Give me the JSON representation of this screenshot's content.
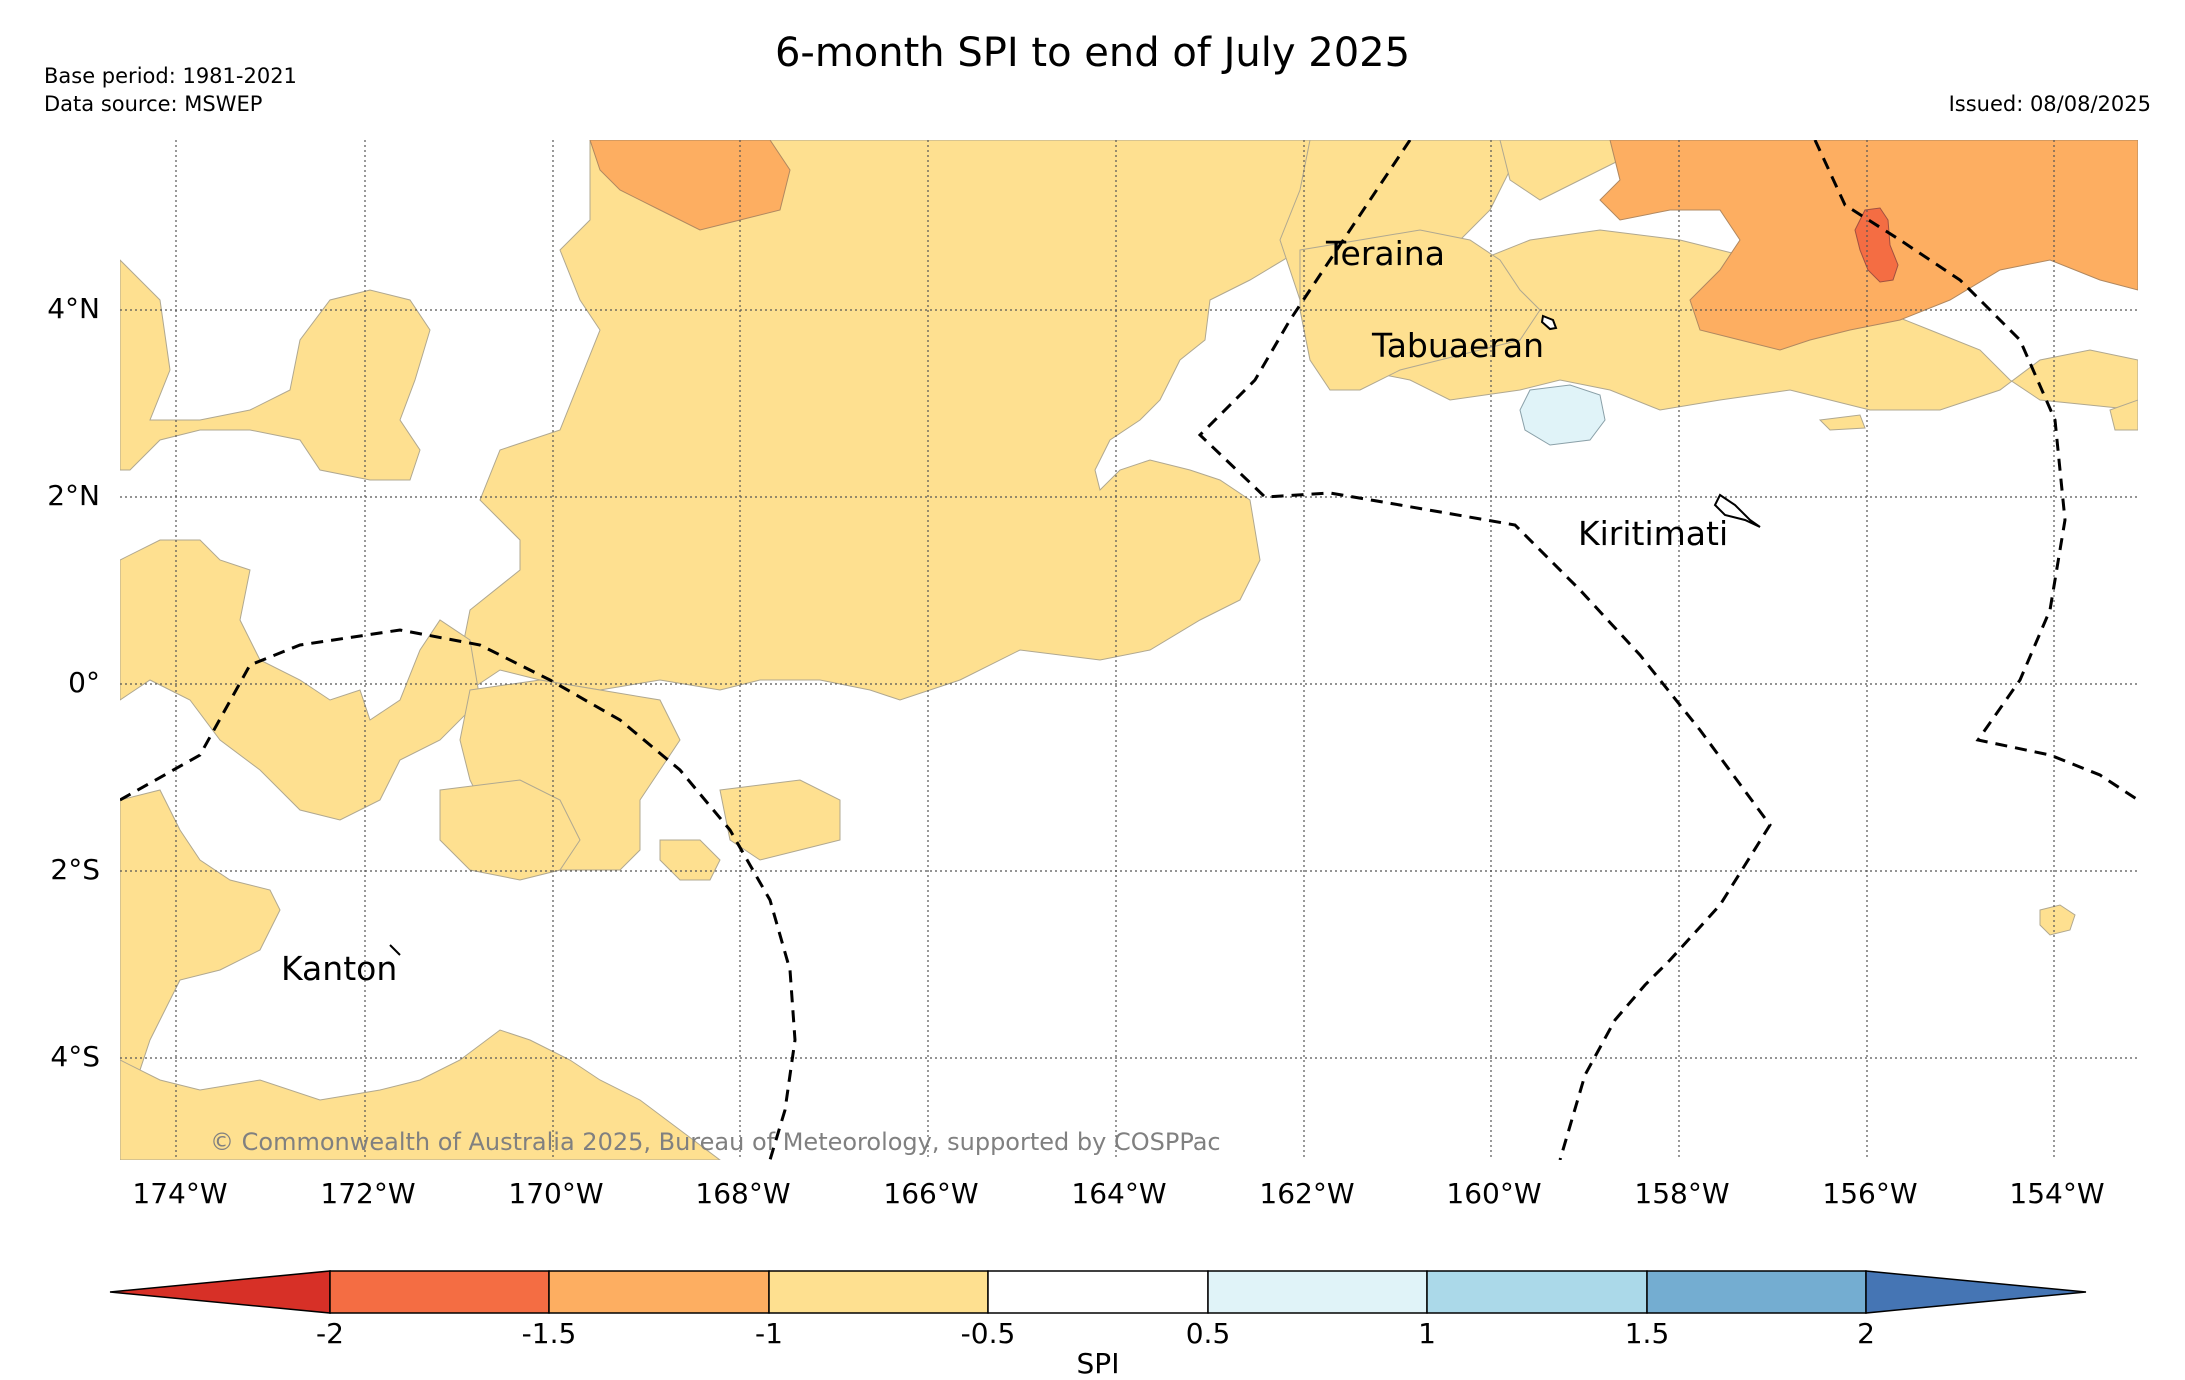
{
  "title": "6-month SPI to end of July 2025",
  "base_period": "Base period: 1981-2021",
  "data_source": "Data source: MSWEP",
  "issued": "Issued: 08/08/2025",
  "copyright": "© Commonwealth of Australia 2025, Bureau of Meteorology, supported by COSPPac",
  "axes": {
    "lon_labels": [
      "174°W",
      "172°W",
      "170°W",
      "168°W",
      "166°W",
      "164°W",
      "162°W",
      "160°W",
      "158°W",
      "156°W",
      "154°W"
    ],
    "lat_labels": [
      "4°N",
      "2°N",
      "0°",
      "2°S",
      "4°S"
    ]
  },
  "places": [
    {
      "name": "Teraina",
      "lon": -161.4,
      "lat": 4.7
    },
    {
      "name": "Tabuaeran",
      "lon": -159.4,
      "lat": 3.9
    },
    {
      "name": "Kiritimati",
      "lon": -157.4,
      "lat": 1.9
    },
    {
      "name": "Kanton",
      "lon": -171.7,
      "lat": -2.8
    }
  ],
  "colorbar": {
    "label": "SPI",
    "ticks": [
      "-2",
      "-1.5",
      "-1",
      "-0.5",
      "0.5",
      "1",
      "1.5",
      "2"
    ],
    "colors": [
      "#d73027",
      "#f46d43",
      "#fdae61",
      "#fee090",
      "#ffffff",
      "#e0f3f8",
      "#abd9e9",
      "#74add1",
      "#4575b4"
    ],
    "categories": [
      "< -2",
      "-2 to -1.5",
      "-1.5 to -1",
      "-1 to -0.5",
      "-0.5 to 0.5",
      "0.5 to 1",
      "1 to 1.5",
      "1.5 to 2",
      "> 2"
    ]
  },
  "legend_colors": {
    "dry_moderate": "#fee090",
    "dry_severe": "#fdae61",
    "dry_extreme": "#f46d43",
    "wet_mild": "#e0f3f8",
    "boundary_line": "#000000",
    "copyright_text": "#808080"
  }
}
